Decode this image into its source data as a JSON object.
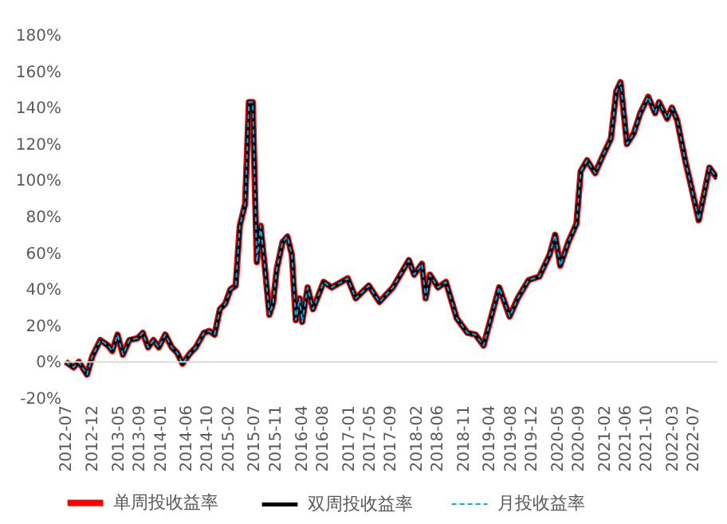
{
  "chart_data": {
    "type": "line",
    "x": [
      "2012-07-01",
      "2012-08-16",
      "2012-09-16",
      "2012-11-02",
      "2012-12-03",
      "2013-01-19",
      "2013-03-05",
      "2013-03-29",
      "2013-04-29",
      "2013-05-30",
      "2013-07-07",
      "2013-08-23",
      "2013-09-23",
      "2013-10-24",
      "2013-11-24",
      "2013-12-25",
      "2014-02-01",
      "2014-03-11",
      "2014-04-11",
      "2014-05-12",
      "2014-06-28",
      "2014-07-29",
      "2014-09-14",
      "2014-10-15",
      "2014-11-15",
      "2014-12-16",
      "2015-01-16",
      "2015-02-16",
      "2015-03-18",
      "2015-04-11",
      "2015-05-12",
      "2015-06-03",
      "2015-06-25",
      "2015-07-19",
      "2015-08-10",
      "2015-09-05",
      "2015-09-30",
      "2015-10-21",
      "2015-11-12",
      "2015-12-16",
      "2016-01-13",
      "2016-02-08",
      "2016-03-02",
      "2016-03-24",
      "2016-04-08",
      "2016-05-10",
      "2016-06-10",
      "2016-08-11",
      "2016-09-27",
      "2016-12-29",
      "2017-02-14",
      "2017-05-01",
      "2017-07-02",
      "2017-09-18",
      "2017-12-20",
      "2018-01-20",
      "2018-03-06",
      "2018-03-28",
      "2018-04-22",
      "2018-06-08",
      "2018-07-24",
      "2018-09-25",
      "2018-11-26",
      "2019-01-12",
      "2019-02-28",
      "2019-05-30",
      "2019-07-30",
      "2019-09-15",
      "2019-11-17",
      "2020-01-19",
      "2020-03-19",
      "2020-04-20",
      "2020-05-20",
      "2020-07-06",
      "2020-08-22",
      "2020-09-16",
      "2020-10-23",
      "2020-12-09",
      "2021-01-25",
      "2021-03-11",
      "2021-04-11",
      "2021-05-06",
      "2021-06-12",
      "2021-07-22",
      "2021-08-29",
      "2021-10-14",
      "2021-11-23",
      "2021-12-16",
      "2022-02-01",
      "2022-03-01",
      "2022-04-01",
      "2022-05-17",
      "2022-06-18",
      "2022-08-04",
      "2022-10-05",
      "2022-11-21"
    ],
    "series": [
      {
        "name": "单周投收益率",
        "color": "#ff0000",
        "line_style": "solid",
        "values": [
          0,
          -3,
          0,
          -7,
          3,
          12,
          9,
          6,
          15,
          4,
          12,
          13,
          16,
          8,
          12,
          8,
          15,
          8,
          5,
          -1,
          5,
          8,
          16,
          17,
          15,
          29,
          32,
          40,
          42,
          75,
          87,
          143,
          143,
          55,
          75,
          51,
          26,
          32,
          51,
          66,
          69,
          59,
          23,
          35,
          22,
          41,
          29,
          44,
          41,
          46,
          35,
          42,
          33,
          41,
          56,
          48,
          54,
          35,
          48,
          41,
          44,
          24,
          16,
          15,
          9,
          41,
          25,
          35,
          45,
          47,
          59,
          70,
          53,
          66,
          76,
          105,
          111,
          104,
          114,
          123,
          149,
          154,
          120,
          126,
          137,
          146,
          137,
          143,
          134,
          140,
          133,
          111,
          98,
          78,
          107,
          101
        ]
      },
      {
        "name": "双周投收益率",
        "color": "#000000",
        "line_style": "solid",
        "values": [
          0,
          -3,
          0,
          -7,
          3,
          12,
          9,
          6,
          15,
          4,
          12,
          13,
          16,
          8,
          12,
          8,
          15,
          8,
          5,
          -1,
          5,
          8,
          16,
          17,
          15,
          29,
          32,
          40,
          42,
          75,
          87,
          143,
          143,
          55,
          75,
          51,
          26,
          32,
          51,
          66,
          69,
          59,
          23,
          35,
          22,
          41,
          29,
          44,
          41,
          46,
          35,
          42,
          33,
          41,
          56,
          48,
          54,
          35,
          48,
          41,
          44,
          24,
          16,
          15,
          9,
          41,
          25,
          35,
          45,
          47,
          59,
          70,
          53,
          66,
          76,
          105,
          111,
          104,
          114,
          123,
          149,
          154,
          120,
          126,
          137,
          146,
          137,
          143,
          134,
          140,
          133,
          111,
          98,
          78,
          107,
          101
        ]
      },
      {
        "name": "月投收益率",
        "color": "#00b0f0",
        "line_style": "dashed",
        "values": [
          0,
          -3,
          0,
          -7,
          3,
          12,
          9,
          6,
          15,
          4,
          12,
          13,
          16,
          8,
          12,
          8,
          15,
          8,
          5,
          -1,
          5,
          8,
          16,
          17,
          15,
          29,
          32,
          40,
          42,
          75,
          87,
          143,
          143,
          55,
          75,
          51,
          26,
          32,
          51,
          66,
          69,
          59,
          23,
          35,
          22,
          41,
          29,
          44,
          41,
          46,
          35,
          42,
          33,
          41,
          56,
          48,
          54,
          35,
          48,
          41,
          44,
          24,
          16,
          15,
          9,
          41,
          25,
          35,
          45,
          47,
          59,
          70,
          53,
          66,
          76,
          105,
          111,
          104,
          114,
          123,
          149,
          154,
          120,
          126,
          137,
          146,
          137,
          143,
          134,
          140,
          133,
          111,
          98,
          78,
          107,
          101
        ]
      }
    ],
    "xlim": [
      "2012-06-20",
      "2022-11-21"
    ],
    "xticks": [
      {
        "value": "2012-07",
        "label": "2012-07"
      },
      {
        "value": "2012-12",
        "label": "2012-12"
      },
      {
        "value": "2013-05",
        "label": "2013-05"
      },
      {
        "value": "2013-09",
        "label": "2013-09"
      },
      {
        "value": "2014-01",
        "label": "2014-01"
      },
      {
        "value": "2014-06",
        "label": "2014-06"
      },
      {
        "value": "2014-10",
        "label": "2014-10"
      },
      {
        "value": "2015-02",
        "label": "2015-02"
      },
      {
        "value": "2015-07",
        "label": "2015-07"
      },
      {
        "value": "2015-11",
        "label": "2015-11"
      },
      {
        "value": "2016-04",
        "label": "2016-04"
      },
      {
        "value": "2016-08",
        "label": "2016-08"
      },
      {
        "value": "2017-01",
        "label": "2017-01"
      },
      {
        "value": "2017-05",
        "label": "2017-05"
      },
      {
        "value": "2017-09",
        "label": "2017-09"
      },
      {
        "value": "2018-02",
        "label": "2018-02"
      },
      {
        "value": "2018-06",
        "label": "2018-06"
      },
      {
        "value": "2018-11",
        "label": "2018-11"
      },
      {
        "value": "2019-04",
        "label": "2019-04"
      },
      {
        "value": "2019-08",
        "label": "2019-08"
      },
      {
        "value": "2019-12",
        "label": "2019-12"
      },
      {
        "value": "2020-05",
        "label": "2020-05"
      },
      {
        "value": "2020-09",
        "label": "2020-09"
      },
      {
        "value": "2021-02",
        "label": "2021-02"
      },
      {
        "value": "2021-06",
        "label": "2021-06"
      },
      {
        "value": "2021-10",
        "label": "2021-10"
      },
      {
        "value": "2022-03",
        "label": "2022-03"
      },
      {
        "value": "2022-07",
        "label": "2022-07"
      }
    ],
    "ylim": [
      -20,
      180
    ],
    "yticks": [
      {
        "value": -20,
        "label": "-20%"
      },
      {
        "value": 0,
        "label": "0%"
      },
      {
        "value": 20,
        "label": "20%"
      },
      {
        "value": 40,
        "label": "40%"
      },
      {
        "value": 60,
        "label": "60%"
      },
      {
        "value": 80,
        "label": "80%"
      },
      {
        "value": 100,
        "label": "100%"
      },
      {
        "value": 120,
        "label": "120%"
      },
      {
        "value": 140,
        "label": "140%"
      },
      {
        "value": 160,
        "label": "160%"
      },
      {
        "value": 180,
        "label": "180%"
      }
    ],
    "ref_lines": [
      {
        "axis": "y",
        "value": 0,
        "label": null,
        "color": "#d9d9d9"
      }
    ],
    "grid": false,
    "legend": "bottom"
  }
}
